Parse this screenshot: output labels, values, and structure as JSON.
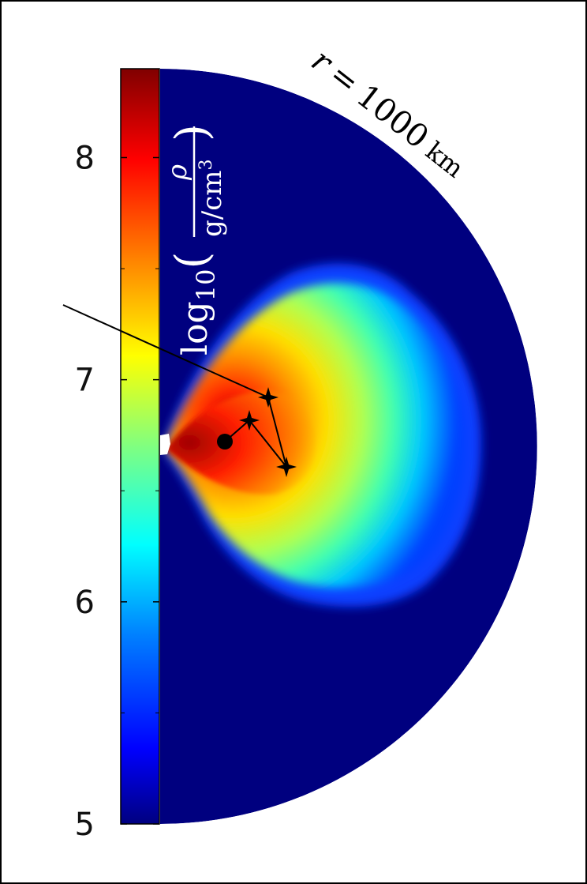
{
  "chart_data": {
    "type": "heatmap",
    "colorbar": {
      "label": "log10(ρ/(g/cm3))",
      "range": [
        5,
        8.4
      ],
      "ticks": [
        {
          "value": 8,
          "label": "8"
        },
        {
          "value": 7,
          "label": "7"
        },
        {
          "value": 6,
          "label": "6"
        },
        {
          "value": 5,
          "label": "5"
        }
      ],
      "minor_ticks": [
        7.5,
        6.5,
        5.5
      ],
      "colormap": "jet",
      "colors": [
        "#000080",
        "#0000ff",
        "#0080ff",
        "#00ffff",
        "#80ff80",
        "#ffff00",
        "#ff8000",
        "#ff0000",
        "#800000"
      ]
    },
    "annotation": {
      "r_symbol": "r",
      "equals": "=",
      "value": "1000",
      "unit": "km"
    },
    "axis_title_parts": {
      "func": "log",
      "sub": "10",
      "numerator": "ρ",
      "denominator": "g/cm",
      "exponent": "3",
      "open": "(",
      "close": ")"
    },
    "background_color": "#00007f",
    "trajectory": {
      "marker_start": "circle",
      "marker_points": "star"
    }
  }
}
